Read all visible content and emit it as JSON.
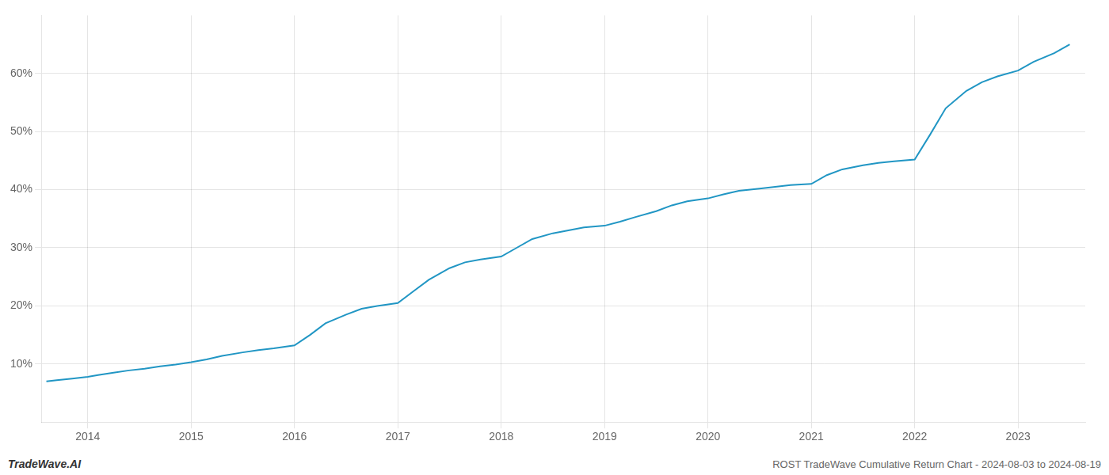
{
  "chart_data": {
    "type": "line",
    "title": "ROST TradeWave Cumulative Return Chart - 2024-08-03 to 2024-08-19",
    "annotations": [
      "TradeWave.AI"
    ],
    "color": "#2196c4",
    "x": [
      2013.6,
      2013.7,
      2013.85,
      2014.0,
      2014.1,
      2014.25,
      2014.4,
      2014.55,
      2014.7,
      2014.85,
      2015.0,
      2015.15,
      2015.3,
      2015.5,
      2015.65,
      2015.8,
      2016.0,
      2016.15,
      2016.3,
      2016.5,
      2016.65,
      2016.8,
      2017.0,
      2017.15,
      2017.3,
      2017.5,
      2017.65,
      2017.8,
      2018.0,
      2018.15,
      2018.3,
      2018.5,
      2018.65,
      2018.8,
      2019.0,
      2019.15,
      2019.3,
      2019.5,
      2019.65,
      2019.8,
      2020.0,
      2020.15,
      2020.3,
      2020.5,
      2020.65,
      2020.8,
      2021.0,
      2021.15,
      2021.3,
      2021.5,
      2021.65,
      2021.8,
      2022.0,
      2022.15,
      2022.3,
      2022.5,
      2022.65,
      2022.8,
      2023.0,
      2023.15,
      2023.35,
      2023.5
    ],
    "values": [
      7.0,
      7.2,
      7.5,
      7.8,
      8.1,
      8.5,
      8.9,
      9.2,
      9.6,
      9.9,
      10.3,
      10.8,
      11.4,
      12.0,
      12.4,
      12.7,
      13.2,
      15.0,
      17.0,
      18.5,
      19.5,
      20.0,
      20.5,
      22.5,
      24.5,
      26.5,
      27.5,
      28.0,
      28.5,
      30.0,
      31.5,
      32.5,
      33.0,
      33.5,
      33.8,
      34.5,
      35.3,
      36.3,
      37.3,
      38.0,
      38.5,
      39.2,
      39.8,
      40.2,
      40.5,
      40.8,
      41.0,
      42.5,
      43.5,
      44.2,
      44.6,
      44.9,
      45.2,
      49.5,
      54.0,
      57.0,
      58.5,
      59.5,
      60.5,
      62.0,
      63.5,
      65.0
    ],
    "xlim": [
      2013.55,
      2023.65
    ],
    "xticks": [
      2014,
      2015,
      2016,
      2017,
      2018,
      2019,
      2020,
      2021,
      2022,
      2023
    ],
    "ylim": [
      0,
      70
    ],
    "yticks": [
      {
        "value": 10,
        "label": "10%"
      },
      {
        "value": 20,
        "label": "20%"
      },
      {
        "value": 30,
        "label": "30%"
      },
      {
        "value": 40,
        "label": "40%"
      },
      {
        "value": 50,
        "label": "50%"
      },
      {
        "value": 60,
        "label": "60%"
      }
    ],
    "grid": true
  }
}
